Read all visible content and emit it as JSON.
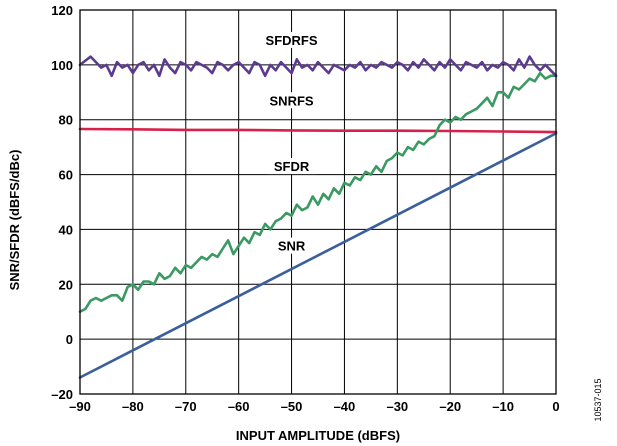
{
  "chart_data": {
    "type": "line",
    "xlabel": "INPUT AMPLITUDE (dBFS)",
    "ylabel": "SNR/SFDR (dBFS/dBc)",
    "xlim": [
      -90,
      0
    ],
    "ylim": [
      -20,
      120
    ],
    "xticks": [
      -90,
      -80,
      -70,
      -60,
      -50,
      -40,
      -30,
      -20,
      -10,
      0
    ],
    "yticks": [
      -20,
      0,
      20,
      40,
      60,
      80,
      100,
      120
    ],
    "xtick_labels": [
      "–90",
      "–80",
      "–70",
      "–60",
      "–50",
      "–40",
      "–30",
      "–20",
      "–10",
      "0"
    ],
    "ytick_labels": [
      "–20",
      "0",
      "20",
      "40",
      "60",
      "80",
      "100",
      "120"
    ],
    "grid": true,
    "figure_id": "10537-015",
    "series": [
      {
        "name": "SFDRFS",
        "color": "#5b3a8f",
        "x": [
          -90,
          -88,
          -87,
          -86,
          -85,
          -84,
          -83,
          -82,
          -81,
          -80,
          -79,
          -78,
          -77,
          -76,
          -75,
          -74,
          -73,
          -72,
          -71,
          -70,
          -69,
          -68,
          -67,
          -66,
          -65,
          -64,
          -63,
          -62,
          -61,
          -60,
          -59,
          -58,
          -57,
          -56,
          -55,
          -54,
          -53,
          -52,
          -51,
          -50,
          -49,
          -48,
          -47,
          -46,
          -45,
          -44,
          -43,
          -42,
          -41,
          -40,
          -39,
          -38,
          -37,
          -36,
          -35,
          -34,
          -33,
          -32,
          -31,
          -30,
          -29,
          -28,
          -27,
          -26,
          -25,
          -24,
          -23,
          -22,
          -21,
          -20,
          -19,
          -18,
          -17,
          -16,
          -15,
          -14,
          -13,
          -12,
          -11,
          -10,
          -9,
          -8,
          -7,
          -6,
          -5,
          -4,
          -3,
          -2,
          -1,
          0
        ],
        "values": [
          100,
          103,
          101,
          99,
          100,
          96,
          101,
          99,
          100,
          97,
          100,
          101,
          98,
          100,
          96,
          102,
          99,
          97,
          101,
          100,
          98,
          101,
          100,
          99,
          97,
          101,
          100,
          98,
          100,
          101,
          99,
          97,
          101,
          100,
          96,
          100,
          98,
          101,
          99,
          97,
          102,
          99,
          100,
          98,
          101,
          99,
          97,
          100,
          99,
          98,
          100,
          99,
          101,
          98,
          100,
          99,
          101,
          100,
          99,
          101,
          100,
          98,
          101,
          99,
          102,
          100,
          98,
          101,
          99,
          102,
          100,
          98,
          101,
          100,
          99,
          101,
          98,
          100,
          99,
          101,
          100,
          98,
          102,
          99,
          103,
          100,
          98,
          100,
          98,
          96
        ]
      },
      {
        "name": "SNRFS",
        "color": "#d6224a",
        "x": [
          -90,
          -80,
          -70,
          -60,
          -50,
          -40,
          -30,
          -20,
          -10,
          0
        ],
        "values": [
          76.6,
          76.5,
          76.3,
          76.3,
          76.1,
          76.0,
          76.0,
          75.9,
          75.7,
          75.5
        ]
      },
      {
        "name": "SFDR",
        "color": "#3a9a62",
        "x": [
          -90,
          -89,
          -88,
          -87,
          -86,
          -85,
          -84,
          -83,
          -82,
          -81,
          -80,
          -79,
          -78,
          -77,
          -76,
          -75,
          -74,
          -73,
          -72,
          -71,
          -70,
          -69,
          -68,
          -67,
          -66,
          -65,
          -64,
          -63,
          -62,
          -61,
          -60,
          -59,
          -58,
          -57,
          -56,
          -55,
          -54,
          -53,
          -52,
          -51,
          -50,
          -49,
          -48,
          -47,
          -46,
          -45,
          -44,
          -43,
          -42,
          -41,
          -40,
          -39,
          -38,
          -37,
          -36,
          -35,
          -34,
          -33,
          -32,
          -31,
          -30,
          -29,
          -28,
          -27,
          -26,
          -25,
          -24,
          -23,
          -22,
          -21,
          -20,
          -19,
          -18,
          -17,
          -16,
          -15,
          -14,
          -13,
          -12,
          -11,
          -10,
          -9,
          -8,
          -7,
          -6,
          -5,
          -4,
          -3,
          -2,
          -1,
          0
        ],
        "values": [
          10,
          11,
          14,
          15,
          14,
          15,
          16,
          16,
          14,
          19,
          20,
          18,
          21,
          21,
          20,
          24,
          22,
          23,
          26,
          24,
          27,
          26,
          28,
          30,
          29,
          31,
          30,
          33,
          36,
          31,
          34,
          37,
          35,
          39,
          38,
          42,
          40,
          43,
          44,
          46,
          45,
          49,
          47,
          48,
          52,
          49,
          53,
          51,
          55,
          53,
          57,
          56,
          59,
          58,
          61,
          60,
          63,
          61,
          65,
          66,
          68,
          67,
          70,
          69,
          72,
          71,
          73,
          74,
          78,
          80,
          79,
          81,
          80,
          82,
          83,
          84,
          86,
          88,
          85,
          90,
          90,
          88,
          92,
          91,
          93,
          95,
          94,
          97,
          95,
          96,
          96
        ]
      },
      {
        "name": "SNR",
        "color": "#3c5f9c",
        "x": [
          -90,
          0
        ],
        "values": [
          -14,
          75
        ]
      }
    ]
  }
}
